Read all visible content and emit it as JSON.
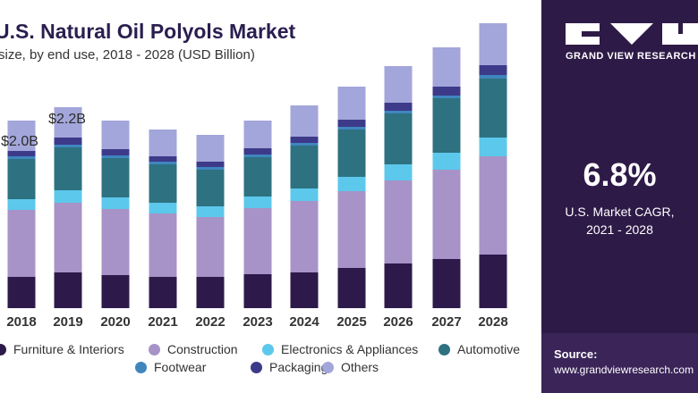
{
  "title": "U.S. Natural Oil Polyols Market",
  "subtitle": "size, by end use, 2018 - 2028 (USD Billion)",
  "brand": {
    "name": "GRAND VIEW RESEARCH"
  },
  "cagr": {
    "value": "6.8%",
    "label_line1": "U.S. Market CAGR,",
    "label_line2": "2021 - 2028"
  },
  "source": {
    "title": "Source:",
    "url": "www.grandviewresearch.com"
  },
  "chart_data": {
    "type": "bar",
    "stacked": true,
    "categories": [
      "2018",
      "2019",
      "2020",
      "2021",
      "2022",
      "2023",
      "2024",
      "2025",
      "2026",
      "2027",
      "2028"
    ],
    "series": [
      {
        "name": "Furniture & Interiors",
        "color": "#2d1a4a",
        "values": [
          0.35,
          0.4,
          0.37,
          0.35,
          0.35,
          0.38,
          0.4,
          0.45,
          0.5,
          0.55,
          0.6
        ]
      },
      {
        "name": "Construction",
        "color": "#a793c7",
        "values": [
          0.75,
          0.78,
          0.74,
          0.71,
          0.67,
          0.74,
          0.8,
          0.86,
          0.93,
          1.0,
          1.1
        ]
      },
      {
        "name": "Electronics & Appliances",
        "color": "#5cc8ec",
        "values": [
          0.12,
          0.14,
          0.13,
          0.12,
          0.12,
          0.13,
          0.14,
          0.16,
          0.18,
          0.19,
          0.21
        ]
      },
      {
        "name": "Automotive",
        "color": "#2e7180",
        "values": [
          0.45,
          0.48,
          0.44,
          0.43,
          0.41,
          0.44,
          0.48,
          0.53,
          0.57,
          0.61,
          0.66
        ]
      },
      {
        "name": "Footwear",
        "color": "#3f86bf",
        "values": [
          0.03,
          0.03,
          0.03,
          0.03,
          0.03,
          0.03,
          0.03,
          0.03,
          0.03,
          0.03,
          0.04
        ]
      },
      {
        "name": "Packaging",
        "color": "#3d3a8a",
        "values": [
          0.06,
          0.08,
          0.07,
          0.06,
          0.06,
          0.07,
          0.07,
          0.08,
          0.09,
          0.1,
          0.11
        ]
      },
      {
        "name": "Others",
        "color": "#a3a6da",
        "values": [
          0.34,
          0.34,
          0.32,
          0.3,
          0.3,
          0.31,
          0.35,
          0.37,
          0.41,
          0.44,
          0.47
        ]
      }
    ],
    "data_labels": [
      {
        "category": "2018",
        "text": "$2.0B"
      },
      {
        "category": "2019",
        "text": "$2.2B"
      }
    ],
    "legend": {
      "placement": "bottom"
    }
  }
}
